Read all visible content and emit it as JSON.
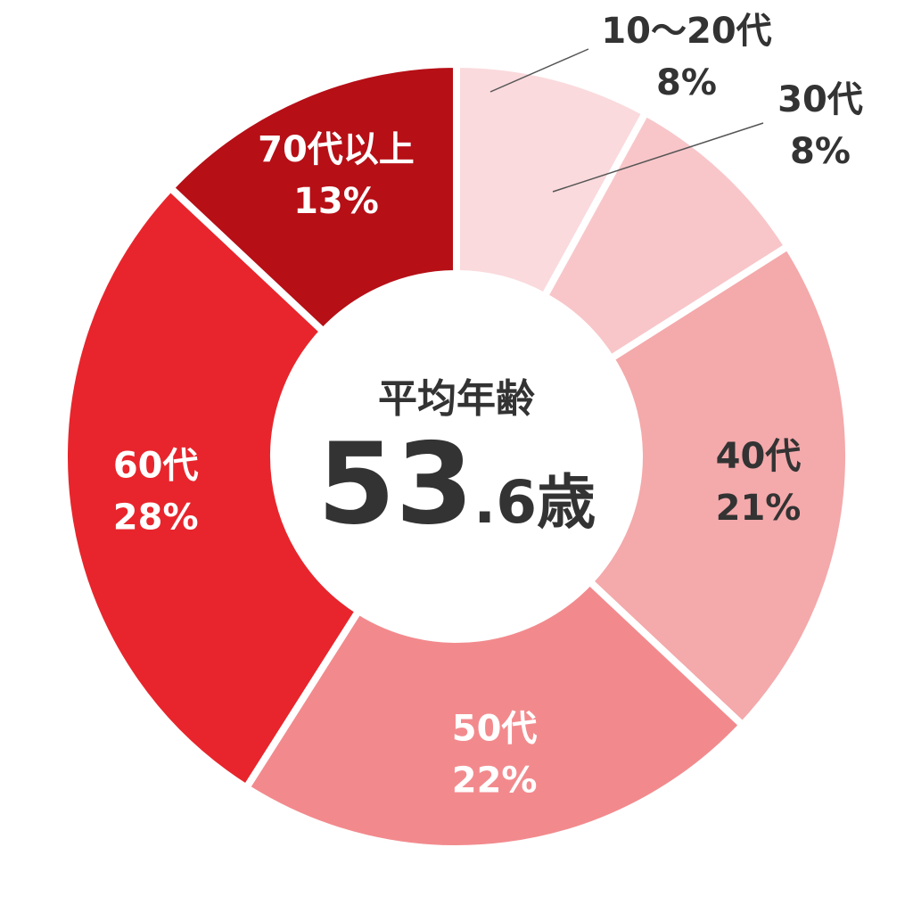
{
  "chart_data": {
    "type": "pie",
    "donut": true,
    "categories": [
      "10～20代",
      "30代",
      "40代",
      "50代",
      "60代",
      "70代以上"
    ],
    "values": [
      8,
      8,
      21,
      22,
      28,
      13
    ],
    "value_labels": [
      "8%",
      "8%",
      "21%",
      "22%",
      "28%",
      "13%"
    ],
    "colors": [
      "#FADADD",
      "#F8C6C9",
      "#F4A9AB",
      "#F28A8D",
      "#E8252C",
      "#B60F16"
    ],
    "label_colors": [
      "#333333",
      "#333333",
      "#333333",
      "#FFFFFF",
      "#FFFFFF",
      "#FFFFFF"
    ],
    "center": {
      "caption": "平均年齢",
      "value_main": "53",
      "value_sub": ".6歳"
    }
  }
}
